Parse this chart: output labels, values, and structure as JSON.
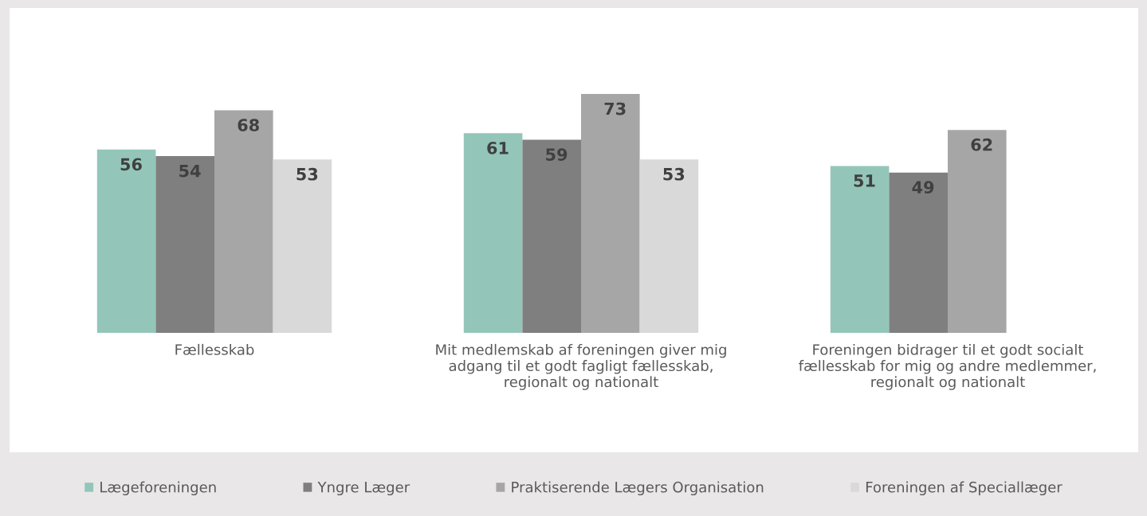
{
  "chart_data": {
    "type": "bar",
    "categories": [
      "Fællesskab",
      "Mit medlemskab af foreningen giver mig\nadgang til et godt fagligt fællesskab,\nregionalt og nationalt",
      "Foreningen bidrager til et godt socialt\nfællesskab for mig og andre medlemmer,\nregionalt og nationalt"
    ],
    "series": [
      {
        "name": "Lægeforeningen",
        "color": "#93c6b9",
        "values": [
          56,
          61,
          51
        ]
      },
      {
        "name": "Yngre Læger",
        "color": "#7f7f7f",
        "values": [
          54,
          59,
          49
        ]
      },
      {
        "name": "Praktiserende Lægers Organisation",
        "color": "#a6a6a6",
        "values": [
          68,
          73,
          62
        ]
      },
      {
        "name": "Foreningen af Speciallæger",
        "color": "#d9d9d9",
        "values": [
          53,
          53,
          null
        ]
      }
    ],
    "data_labels": true,
    "legend": "bottom"
  }
}
